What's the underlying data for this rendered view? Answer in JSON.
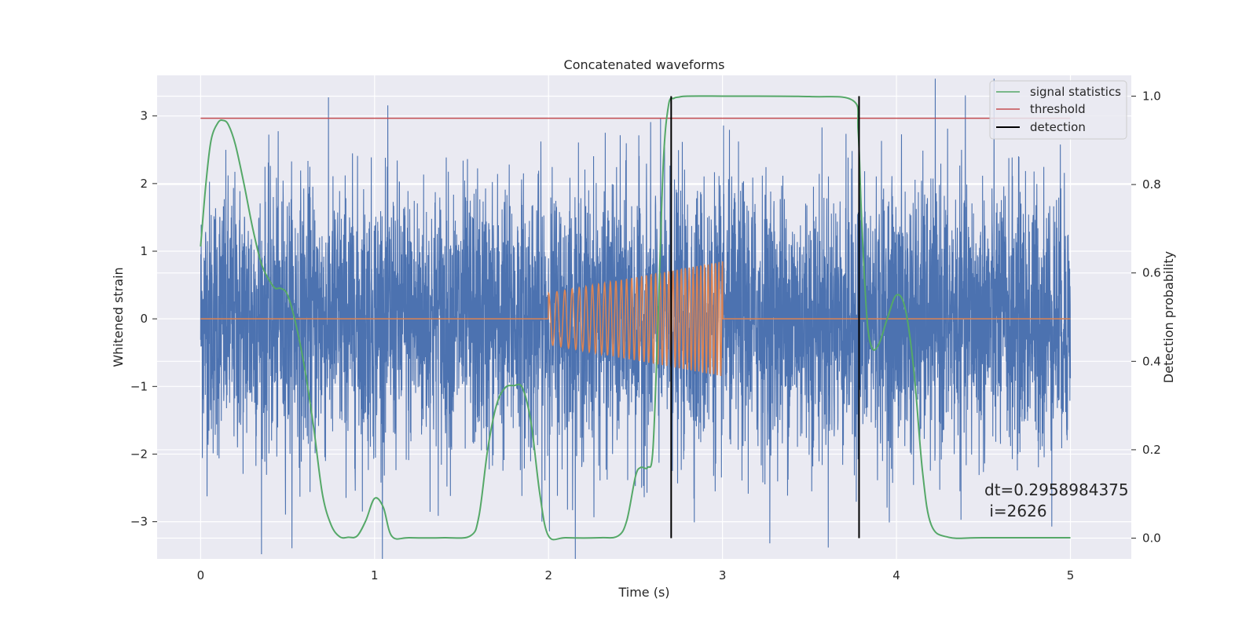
{
  "chart_data": {
    "type": "line",
    "title": "Concatenated waveforms",
    "xlabel": "Time (s)",
    "ylabel": "Whitened strain",
    "ylabel_right": "Detection probability",
    "xlim": [
      -0.25,
      5.35
    ],
    "ylim": [
      -3.55,
      3.6
    ],
    "ylim_right": [
      -0.047,
      1.047
    ],
    "x_ticks": [
      0,
      1,
      2,
      3,
      4,
      5
    ],
    "y_ticks": [
      -3,
      -2,
      -1,
      0,
      1,
      2,
      3
    ],
    "y_ticks_right": [
      0.0,
      0.2,
      0.4,
      0.6,
      0.8,
      1.0
    ],
    "x_tick_labels": [
      "0",
      "1",
      "2",
      "3",
      "4",
      "5"
    ],
    "y_tick_labels": [
      "−3",
      "−2",
      "−1",
      "0",
      "1",
      "2",
      "3"
    ],
    "y_tick_labels_right": [
      "0.0",
      "0.2",
      "0.4",
      "0.6",
      "0.8",
      "1.0"
    ],
    "grid": true,
    "legend_position": "top-right",
    "colors": {
      "strain": "#4c72b0",
      "injection": "#dd8452",
      "signal_statistics": "#55a868",
      "threshold": "#c44e52",
      "detection": "#000000",
      "background": "#eaeaf2",
      "grid": "#ffffff"
    },
    "noise": {
      "axis": "left",
      "x_range": [
        0,
        5
      ],
      "sigma": 1.0,
      "max_abs": 3.55
    },
    "injection": {
      "axis": "left",
      "x_range": [
        2.0,
        3.0
      ],
      "amplitude_start": 0.38,
      "amplitude_end": 0.85,
      "freq_start": 20,
      "freq_end": 50
    },
    "series": [
      {
        "name": "signal statistics",
        "axis": "right",
        "x": [
          0,
          0.03,
          0.06,
          0.1,
          0.13,
          0.16,
          0.2,
          0.25,
          0.3,
          0.35,
          0.4,
          0.43,
          0.46,
          0.5,
          0.55,
          0.6,
          0.65,
          0.7,
          0.75,
          0.8,
          0.85,
          0.9,
          0.95,
          1.0,
          1.05,
          1.1,
          1.2,
          1.4,
          1.55,
          1.6,
          1.65,
          1.7,
          1.75,
          1.8,
          1.85,
          1.9,
          1.95,
          2.0,
          2.1,
          2.3,
          2.4,
          2.45,
          2.5,
          2.53,
          2.57,
          2.6,
          2.63,
          2.66,
          2.69,
          2.72,
          2.75,
          2.8,
          3.0,
          3.5,
          3.75,
          3.78,
          3.8,
          3.83,
          3.86,
          3.9,
          3.95,
          4.0,
          4.05,
          4.1,
          4.15,
          4.2,
          4.3,
          4.5,
          5.0
        ],
        "y": [
          0.66,
          0.8,
          0.9,
          0.94,
          0.945,
          0.935,
          0.89,
          0.8,
          0.7,
          0.62,
          0.58,
          0.565,
          0.565,
          0.55,
          0.48,
          0.38,
          0.25,
          0.1,
          0.03,
          0.003,
          0.002,
          0.005,
          0.04,
          0.09,
          0.07,
          0.004,
          0.001,
          0.001,
          0.005,
          0.05,
          0.2,
          0.3,
          0.34,
          0.345,
          0.34,
          0.26,
          0.1,
          0.005,
          0.001,
          0.001,
          0.005,
          0.04,
          0.14,
          0.16,
          0.16,
          0.2,
          0.5,
          0.85,
          0.98,
          0.995,
          0.998,
          1.0,
          1.0,
          0.999,
          0.99,
          0.92,
          0.72,
          0.5,
          0.43,
          0.44,
          0.5,
          0.55,
          0.52,
          0.38,
          0.15,
          0.03,
          0.002,
          0.001,
          0.001
        ]
      },
      {
        "name": "threshold",
        "axis": "right",
        "x": [
          0,
          5
        ],
        "y": [
          0.95,
          0.95
        ]
      }
    ],
    "detections": {
      "name": "detection",
      "x": [
        2.705,
        3.785
      ]
    },
    "legend": [
      {
        "label": "signal statistics",
        "color": "#55a868"
      },
      {
        "label": "threshold",
        "color": "#c44e52"
      },
      {
        "label": "detection",
        "color": "#000000"
      }
    ],
    "annotation": [
      "dt=0.2958984375",
      " i=2626"
    ]
  }
}
